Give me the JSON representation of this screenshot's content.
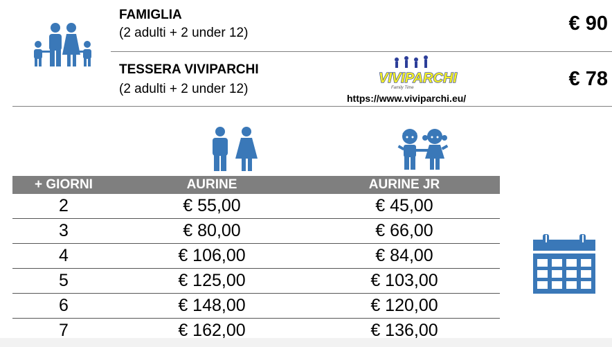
{
  "offers": [
    {
      "title": "FAMIGLIA",
      "subtitle": "(2 adulti + 2 under 12)",
      "price": "€ 90"
    },
    {
      "title": "TESSERA VIVIPARCHI",
      "subtitle": "(2 adulti + 2 under 12)",
      "price": "€ 78"
    }
  ],
  "logo": {
    "text": "VIVIPARCHI",
    "tagline": "Family Time"
  },
  "website": "https://www.viviparchi.eu/",
  "icons": {
    "family": "family-icon",
    "adults": "adults-couple-icon",
    "children": "children-couple-icon",
    "calendar": "calendar-icon",
    "color": "#3a78b8"
  },
  "table": {
    "headers": [
      "+ GIORNI",
      "AURINE",
      "AURINE JR"
    ],
    "rows": [
      [
        "2",
        "€ 55,00",
        "€ 45,00"
      ],
      [
        "3",
        "€ 80,00",
        "€ 66,00"
      ],
      [
        "4",
        "€ 106,00",
        "€ 84,00"
      ],
      [
        "5",
        "€ 125,00",
        "€ 103,00"
      ],
      [
        "6",
        "€ 148,00",
        "€ 120,00"
      ],
      [
        "7",
        "€ 162,00",
        "€ 136,00"
      ]
    ]
  }
}
